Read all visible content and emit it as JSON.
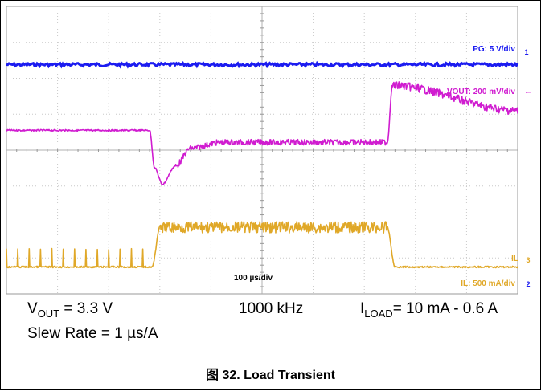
{
  "chart_data": {
    "type": "line",
    "time_scale": "100 µs/div",
    "x_divisions": 10,
    "y_divisions": 8,
    "channels": [
      {
        "id": "PG",
        "label": "PG: 5 V/div",
        "marker": "1",
        "color": "#1c1cf0",
        "level_div": 6.38,
        "description": "flat"
      },
      {
        "id": "VOUT",
        "label": "VOUT: 200 mV/div",
        "marker": "←",
        "color": "#d01cd0",
        "trace_div": [
          [
            0.0,
            4.55
          ],
          [
            2.8,
            4.55
          ],
          [
            2.9,
            3.5
          ],
          [
            3.05,
            3.05
          ],
          [
            3.3,
            3.55
          ],
          [
            3.6,
            4.05
          ],
          [
            4.2,
            4.22
          ],
          [
            7.45,
            4.22
          ],
          [
            7.55,
            5.8
          ],
          [
            10.0,
            5.1
          ]
        ]
      },
      {
        "id": "IL",
        "label": "IL: 500 mA/div",
        "marker": "3",
        "marker2": "2",
        "tag": "IL",
        "color": "#e0a828",
        "trace_div": [
          [
            0.0,
            0.75
          ],
          [
            2.85,
            0.75
          ],
          [
            3.0,
            1.85
          ],
          [
            7.45,
            1.85
          ],
          [
            7.6,
            0.75
          ],
          [
            10.0,
            0.75
          ]
        ]
      }
    ]
  },
  "captions": {
    "vout_main": "V",
    "vout_sub": "OUT",
    "vout_rest": " = 3.3 V",
    "freq": "1000 kHz",
    "iload_main": "I",
    "iload_sub": "LOAD",
    "iload_rest": "= 10 mA - 0.6 A",
    "slew": "Slew Rate = 1 µs/A"
  },
  "figure_title": "图 32. Load Transient"
}
